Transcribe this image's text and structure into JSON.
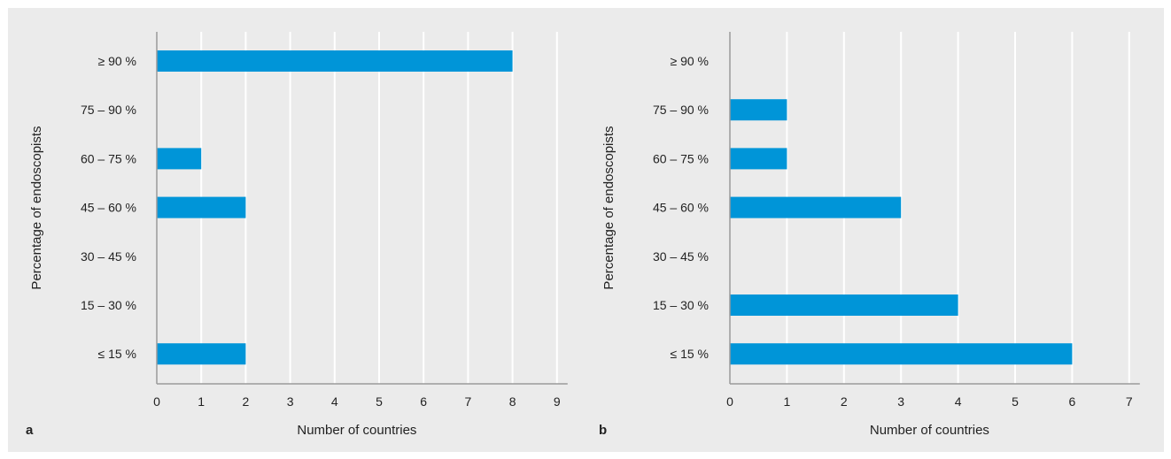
{
  "chart_data": [
    {
      "type": "bar",
      "orientation": "horizontal",
      "panel_label": "a",
      "categories": [
        "≥ 90 %",
        "75 – 90 %",
        "60 – 75 %",
        "45 – 60 %",
        "30 – 45 %",
        "15 – 30 %",
        "≤ 15 %"
      ],
      "values": [
        8,
        0,
        1,
        2,
        0,
        0,
        2
      ],
      "xlabel": "Number of countries",
      "ylabel": "Percentage of endoscopists",
      "xlim": [
        0,
        9
      ],
      "xticks": [
        "0",
        "1",
        "2",
        "3",
        "4",
        "5",
        "6",
        "7",
        "8",
        "9"
      ],
      "grid": "vertical",
      "bar_color": "#0095d8"
    },
    {
      "type": "bar",
      "orientation": "horizontal",
      "panel_label": "b",
      "categories": [
        "≥ 90 %",
        "75 – 90 %",
        "60 – 75 %",
        "45 – 60 %",
        "30 – 45 %",
        "15 – 30 %",
        "≤ 15 %"
      ],
      "values": [
        0,
        1,
        1,
        3,
        0,
        4,
        6
      ],
      "xlabel": "Number of countries",
      "ylabel": "Percentage of endoscopists",
      "xlim": [
        0,
        7
      ],
      "xticks": [
        "0",
        "1",
        "2",
        "3",
        "4",
        "5",
        "6",
        "7"
      ],
      "grid": "vertical",
      "bar_color": "#0095d8"
    }
  ]
}
